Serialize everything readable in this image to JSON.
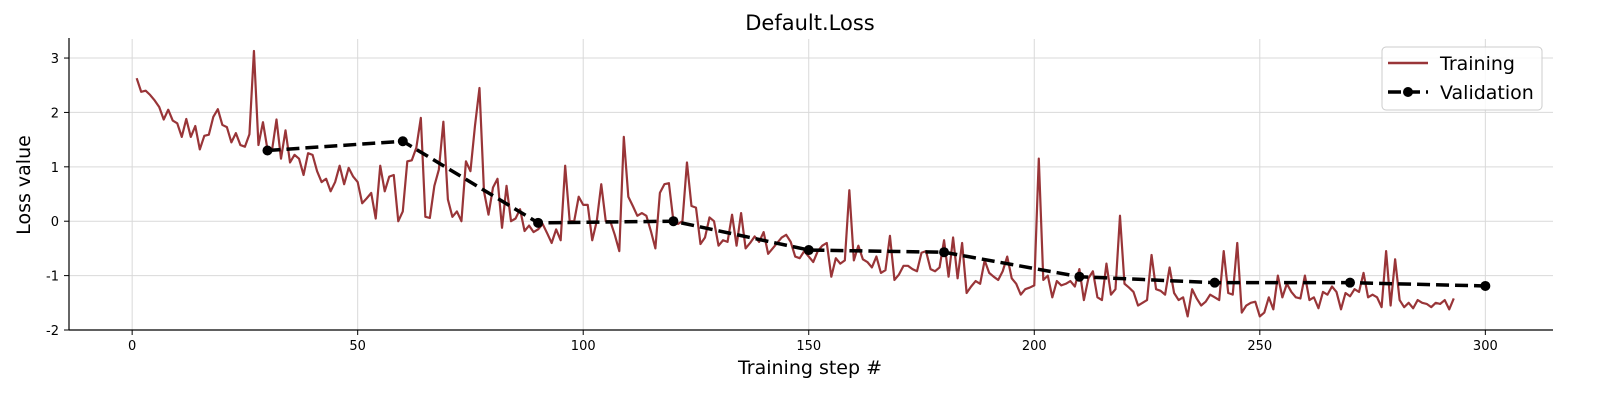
{
  "chart_data": {
    "type": "line",
    "title": "Default.Loss",
    "xlabel": "Training step #",
    "ylabel": "Loss value",
    "xlim": [
      -14,
      315
    ],
    "ylim": [
      -2,
      3.35
    ],
    "xticks": [
      0,
      50,
      100,
      150,
      200,
      250,
      300
    ],
    "yticks": [
      -2,
      -1,
      0,
      1,
      2,
      3
    ],
    "grid": true,
    "legend_position": "top-right",
    "series": [
      {
        "name": "Training",
        "color": "#993538",
        "style": "solid",
        "markers": false,
        "x_start": 1,
        "x_step": 1,
        "y": [
          2.63,
          2.38,
          2.4,
          2.32,
          2.22,
          2.1,
          1.87,
          2.05,
          1.85,
          1.8,
          1.55,
          1.88,
          1.55,
          1.75,
          1.32,
          1.57,
          1.59,
          1.92,
          2.06,
          1.77,
          1.73,
          1.45,
          1.62,
          1.4,
          1.37,
          1.6,
          3.13,
          1.4,
          1.82,
          1.32,
          1.3,
          1.87,
          1.15,
          1.67,
          1.08,
          1.22,
          1.15,
          0.85,
          1.25,
          1.22,
          0.92,
          0.72,
          0.78,
          0.55,
          0.72,
          1.02,
          0.68,
          0.98,
          0.82,
          0.72,
          0.33,
          0.42,
          0.52,
          0.05,
          1.02,
          0.55,
          0.82,
          0.85,
          0.0,
          0.18,
          1.1,
          1.12,
          1.35,
          1.9,
          0.08,
          0.06,
          0.65,
          0.95,
          1.83,
          0.4,
          0.08,
          0.18,
          0.0,
          1.1,
          0.92,
          1.75,
          2.45,
          0.55,
          0.12,
          0.62,
          0.78,
          -0.12,
          0.65,
          0.0,
          0.05,
          0.22,
          -0.18,
          -0.08,
          -0.2,
          -0.15,
          -0.05,
          -0.22,
          -0.4,
          -0.15,
          -0.35,
          1.02,
          0.0,
          0.0,
          0.45,
          0.3,
          0.3,
          -0.35,
          0.0,
          0.68,
          0.0,
          0.0,
          -0.25,
          -0.55,
          1.55,
          0.45,
          0.28,
          0.1,
          0.15,
          0.1,
          -0.18,
          -0.5,
          0.52,
          0.68,
          0.7,
          0.0,
          -0.05,
          0.0,
          1.08,
          0.28,
          0.25,
          -0.42,
          -0.3,
          0.07,
          0.0,
          -0.45,
          -0.35,
          -0.38,
          0.12,
          -0.45,
          0.15,
          -0.5,
          -0.4,
          -0.28,
          -0.38,
          -0.2,
          -0.6,
          -0.5,
          -0.4,
          -0.3,
          -0.25,
          -0.38,
          -0.65,
          -0.68,
          -0.55,
          -0.65,
          -0.75,
          -0.55,
          -0.45,
          -0.4,
          -1.02,
          -0.68,
          -0.78,
          -0.72,
          0.57,
          -0.72,
          -0.45,
          -0.7,
          -0.75,
          -0.85,
          -0.65,
          -0.95,
          -0.9,
          -0.27,
          -1.08,
          -0.98,
          -0.82,
          -0.82,
          -0.88,
          -0.92,
          -0.58,
          -0.55,
          -0.88,
          -0.92,
          -0.85,
          -0.35,
          -1.02,
          -0.3,
          -1.05,
          -0.4,
          -1.32,
          -1.2,
          -1.1,
          -1.15,
          -0.72,
          -0.95,
          -1.02,
          -1.08,
          -0.92,
          -0.65,
          -1.05,
          -1.15,
          -1.35,
          -1.25,
          -1.22,
          -1.18,
          1.15,
          -1.08,
          -1.0,
          -1.4,
          -1.1,
          -1.18,
          -1.15,
          -1.1,
          -1.2,
          -0.88,
          -1.45,
          -1.05,
          -0.92,
          -1.4,
          -1.45,
          -0.78,
          -1.35,
          -1.25,
          0.1,
          -1.15,
          -1.22,
          -1.3,
          -1.55,
          -1.5,
          -1.45,
          -0.62,
          -1.25,
          -1.28,
          -1.35,
          -0.85,
          -1.32,
          -1.45,
          -1.4,
          -1.75,
          -1.25,
          -1.42,
          -1.55,
          -1.48,
          -1.35,
          -1.4,
          -1.45,
          -0.55,
          -1.32,
          -1.35,
          -0.4,
          -1.68,
          -1.55,
          -1.5,
          -1.48,
          -1.75,
          -1.68,
          -1.4,
          -1.62,
          -1.0,
          -1.4,
          -1.15,
          -1.3,
          -1.4,
          -1.42,
          -1.0,
          -1.45,
          -1.4,
          -1.6,
          -1.3,
          -1.35,
          -1.2,
          -1.3,
          -1.62,
          -1.32,
          -1.38,
          -1.25,
          -1.3,
          -0.95,
          -1.4,
          -1.35,
          -1.4,
          -1.58,
          -0.55,
          -1.55,
          -0.7,
          -1.45,
          -1.58,
          -1.5,
          -1.6,
          -1.45,
          -1.5,
          -1.52,
          -1.58,
          -1.5,
          -1.52,
          -1.45,
          -1.62,
          -1.42
        ]
      },
      {
        "name": "Validation",
        "color": "#000000",
        "style": "dashed",
        "markers": true,
        "x": [
          30,
          60,
          90,
          120,
          150,
          180,
          210,
          240,
          270,
          300
        ],
        "y": [
          1.3,
          1.47,
          -0.03,
          0.0,
          -0.53,
          -0.57,
          -1.02,
          -1.13,
          -1.13,
          -1.19
        ]
      }
    ]
  }
}
